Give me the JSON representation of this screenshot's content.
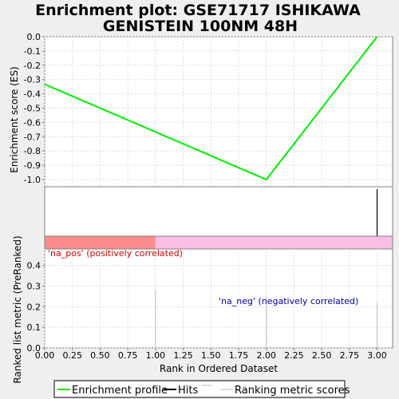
{
  "chart_data": {
    "type": "line",
    "title_line1": "Enrichment plot: GSE71717 ISHIKAWA",
    "title_line2": "GENISTEIN 100NM 48H",
    "xlabel": "Rank in Ordered Dataset",
    "xlim": [
      0,
      3.14
    ],
    "x_ticks": [
      "0.00",
      "0.25",
      "0.50",
      "0.75",
      "1.00",
      "1.25",
      "1.50",
      "1.75",
      "2.00",
      "2.25",
      "2.50",
      "2.75",
      "3.00"
    ],
    "es_panel": {
      "ylabel": "Enrichment score (ES)",
      "ylim": [
        -1.05,
        0.0
      ],
      "y_ticks": [
        "0.0",
        "-0.1",
        "-0.2",
        "-0.3",
        "-0.4",
        "-0.5",
        "-0.6",
        "-0.7",
        "-0.8",
        "-0.9",
        "-1.0"
      ],
      "grid": true,
      "series": [
        {
          "name": "Enrichment profile",
          "color": "#00ee00",
          "x": [
            0,
            2,
            3
          ],
          "y": [
            -0.333,
            -1.0,
            0.0
          ]
        }
      ]
    },
    "hits_panel": {
      "hits": [
        3
      ]
    },
    "correlation_bar": {
      "pos_color": "#fa8c8c",
      "neg_color": "#fabee6",
      "split_at": 1
    },
    "metric_panel": {
      "ylabel": "Ranked list metric (PreRanked)",
      "ylim": [
        0,
        0.48
      ],
      "y_ticks": [
        "0.0",
        "0.1",
        "0.2",
        "0.3",
        "0.4"
      ],
      "grid": true,
      "bars": [
        {
          "x": 1,
          "value": 0.28
        },
        {
          "x": 2,
          "value": 0.25
        },
        {
          "x": 3,
          "value": 0.22
        }
      ],
      "pos_label": "'na_pos' (positively correlated)",
      "pos_label_color": "#cc0000",
      "neg_label": "'na_neg' (negatively correlated)",
      "neg_label_color": "#0000aa"
    },
    "legend": [
      {
        "label": "Enrichment profile",
        "color": "#00ee00"
      },
      {
        "label": "Hits",
        "color": "#000000"
      },
      {
        "label": "Ranking metric scores",
        "color": "#bbbbbb"
      }
    ]
  }
}
